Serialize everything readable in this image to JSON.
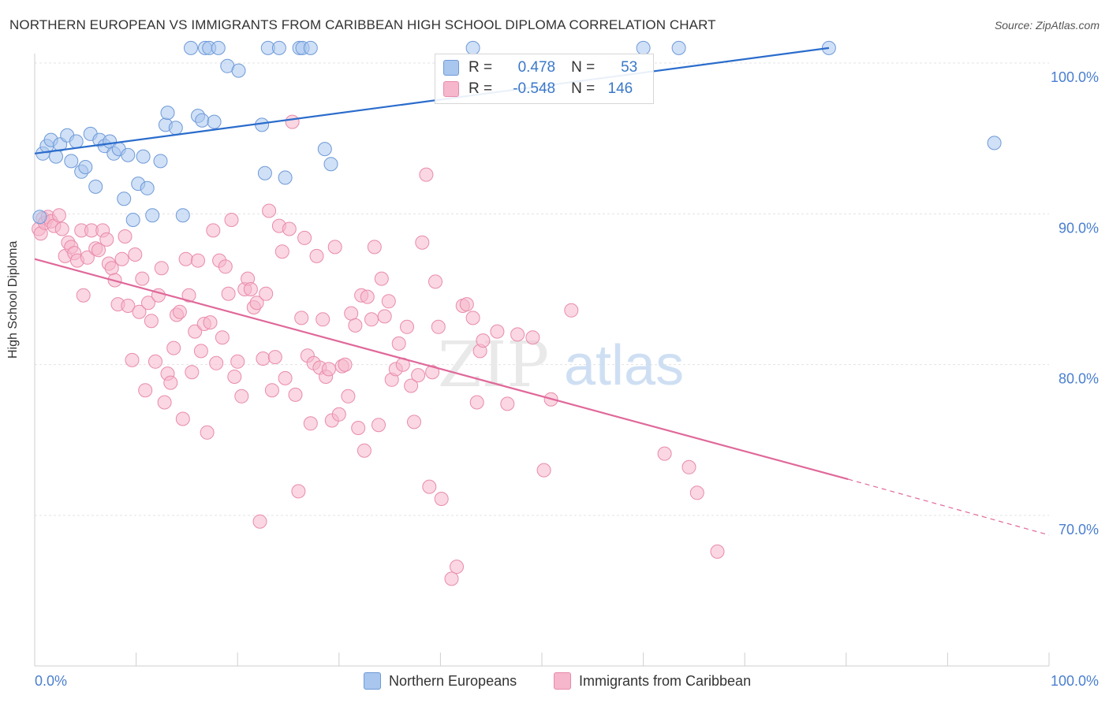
{
  "title": "NORTHERN EUROPEAN VS IMMIGRANTS FROM CARIBBEAN HIGH SCHOOL DIPLOMA CORRELATION CHART",
  "source": "Source: ZipAtlas.com",
  "watermark": {
    "zip": "ZIP",
    "atlas": "atlas"
  },
  "colors": {
    "blue_fill": "#a9c6ee",
    "blue_stroke": "#6e9ad8",
    "blue_line": "#2a6ccc",
    "pink_fill": "#f6b6cb",
    "pink_stroke": "#e98bab",
    "pink_line": "#e0689a",
    "tick_label": "#4a7fcf",
    "grid": "#e3e3e3"
  },
  "legend_stats": [
    {
      "r_label": "R =",
      "r_value": "0.478",
      "n_label": "N =",
      "n_value": "53",
      "color": "#a9c6ee"
    },
    {
      "r_label": "R =",
      "r_value": "-0.548",
      "n_label": "N =",
      "n_value": "146",
      "color": "#f6b6cb"
    }
  ],
  "bottom_legend": [
    {
      "label": "Northern Europeans",
      "color": "#a9c6ee"
    },
    {
      "label": "Immigrants from Caribbean",
      "color": "#f6b6cb"
    }
  ],
  "chart_data": {
    "type": "scatter",
    "title": "NORTHERN EUROPEAN VS IMMIGRANTS FROM CARIBBEAN HIGH SCHOOL DIPLOMA CORRELATION CHART",
    "xlabel": "",
    "ylabel": "High School Diploma",
    "xlim": [
      0,
      100
    ],
    "ylim": [
      59,
      104
    ],
    "x_ticks": [
      "0.0%",
      "100.0%"
    ],
    "y_ticks": [
      {
        "value": 100,
        "label": "100.0%"
      },
      {
        "value": 90,
        "label": "90.0%"
      },
      {
        "value": 80,
        "label": "80.0%"
      },
      {
        "value": 70,
        "label": "70.0%"
      }
    ],
    "grid": true,
    "series": [
      {
        "name": "Northern Europeans",
        "trend": {
          "x0": 0,
          "y0": 94.0,
          "x1": 78.3,
          "y1": 101.0
        },
        "points": [
          [
            0.5,
            89.8
          ],
          [
            0.8,
            94
          ],
          [
            1.2,
            94.5
          ],
          [
            1.6,
            94.9
          ],
          [
            2.1,
            93.8
          ],
          [
            2.5,
            94.6
          ],
          [
            3.2,
            95.2
          ],
          [
            3.6,
            93.5
          ],
          [
            4.1,
            94.8
          ],
          [
            4.6,
            92.8
          ],
          [
            5,
            93.1
          ],
          [
            5.5,
            95.3
          ],
          [
            6,
            91.8
          ],
          [
            6.4,
            94.9
          ],
          [
            6.9,
            94.5
          ],
          [
            7.4,
            94.8
          ],
          [
            7.8,
            94
          ],
          [
            8.3,
            94.3
          ],
          [
            8.8,
            91
          ],
          [
            9.2,
            93.9
          ],
          [
            9.7,
            89.6
          ],
          [
            10.2,
            92
          ],
          [
            10.7,
            93.8
          ],
          [
            11.1,
            91.7
          ],
          [
            11.6,
            89.9
          ],
          [
            12.4,
            93.5
          ],
          [
            12.9,
            95.9
          ],
          [
            13.1,
            96.7
          ],
          [
            13.9,
            95.7
          ],
          [
            14.6,
            89.9
          ],
          [
            15.4,
            101
          ],
          [
            16.1,
            96.5
          ],
          [
            16.5,
            96.2
          ],
          [
            16.8,
            101
          ],
          [
            17.2,
            101
          ],
          [
            17.7,
            96.1
          ],
          [
            18.1,
            101
          ],
          [
            19,
            99.8
          ],
          [
            20.1,
            99.5
          ],
          [
            22.4,
            95.9
          ],
          [
            22.7,
            92.7
          ],
          [
            23,
            101
          ],
          [
            24.1,
            101
          ],
          [
            24.7,
            92.4
          ],
          [
            26.1,
            101
          ],
          [
            26.4,
            101
          ],
          [
            27.2,
            101
          ],
          [
            28.6,
            94.3
          ],
          [
            29.2,
            93.3
          ],
          [
            43.2,
            101
          ],
          [
            60,
            101
          ],
          [
            63.5,
            101
          ],
          [
            78.3,
            101
          ],
          [
            94.6,
            94.7
          ]
        ]
      },
      {
        "name": "Immigrants from Caribbean",
        "trend": {
          "x0": 0,
          "y0": 87.0,
          "x1": 80.2,
          "y1": 72.4,
          "dash_x1": 100,
          "dash_y1": 68.7
        },
        "points": [
          [
            0.4,
            89
          ],
          [
            0.6,
            88.7
          ],
          [
            0.8,
            89.7
          ],
          [
            1,
            89.4
          ],
          [
            1.3,
            89.8
          ],
          [
            1.6,
            89.5
          ],
          [
            1.9,
            89.2
          ],
          [
            2.4,
            89.9
          ],
          [
            2.7,
            89
          ],
          [
            3,
            87.2
          ],
          [
            3.3,
            88.1
          ],
          [
            3.6,
            87.8
          ],
          [
            3.9,
            87.4
          ],
          [
            4.2,
            86.9
          ],
          [
            4.6,
            88.9
          ],
          [
            4.8,
            84.6
          ],
          [
            5.2,
            87.1
          ],
          [
            5.6,
            88.9
          ],
          [
            6,
            87.7
          ],
          [
            6.3,
            87.6
          ],
          [
            6.7,
            88.9
          ],
          [
            7.1,
            88.3
          ],
          [
            7.3,
            86.7
          ],
          [
            7.6,
            86.4
          ],
          [
            7.9,
            85.6
          ],
          [
            8.2,
            84
          ],
          [
            8.6,
            87
          ],
          [
            8.9,
            88.5
          ],
          [
            9.2,
            83.9
          ],
          [
            9.6,
            80.3
          ],
          [
            9.9,
            87.3
          ],
          [
            10.3,
            83.5
          ],
          [
            10.6,
            85.7
          ],
          [
            10.9,
            78.3
          ],
          [
            11.2,
            84.1
          ],
          [
            11.5,
            82.9
          ],
          [
            11.9,
            80.2
          ],
          [
            12.2,
            84.6
          ],
          [
            12.5,
            86.4
          ],
          [
            12.8,
            77.5
          ],
          [
            13.1,
            79.4
          ],
          [
            13.4,
            78.8
          ],
          [
            13.7,
            81.1
          ],
          [
            14,
            83.3
          ],
          [
            14.3,
            83.5
          ],
          [
            14.6,
            76.4
          ],
          [
            14.9,
            87
          ],
          [
            15.2,
            84.6
          ],
          [
            15.5,
            79.5
          ],
          [
            15.8,
            82.2
          ],
          [
            16.1,
            86.9
          ],
          [
            16.4,
            80.9
          ],
          [
            16.7,
            82.7
          ],
          [
            17,
            75.5
          ],
          [
            17.3,
            82.8
          ],
          [
            17.6,
            88.9
          ],
          [
            17.9,
            80.1
          ],
          [
            18.2,
            86.9
          ],
          [
            18.5,
            81.8
          ],
          [
            18.8,
            86.5
          ],
          [
            19.1,
            84.7
          ],
          [
            19.4,
            89.6
          ],
          [
            19.7,
            79.2
          ],
          [
            20,
            80.2
          ],
          [
            20.4,
            77.9
          ],
          [
            20.7,
            85
          ],
          [
            21,
            85.7
          ],
          [
            21.3,
            85
          ],
          [
            21.6,
            83.8
          ],
          [
            21.9,
            84.1
          ],
          [
            22.2,
            69.6
          ],
          [
            22.5,
            80.4
          ],
          [
            22.8,
            84.7
          ],
          [
            23.1,
            90.2
          ],
          [
            23.4,
            78.3
          ],
          [
            23.7,
            80.5
          ],
          [
            24.1,
            89.2
          ],
          [
            24.4,
            87.5
          ],
          [
            24.7,
            79.1
          ],
          [
            25.1,
            89
          ],
          [
            25.4,
            96.1
          ],
          [
            25.7,
            78
          ],
          [
            26,
            71.6
          ],
          [
            26.3,
            83.1
          ],
          [
            26.6,
            88.4
          ],
          [
            26.9,
            80.6
          ],
          [
            27.2,
            76.1
          ],
          [
            27.5,
            80.1
          ],
          [
            27.8,
            87.2
          ],
          [
            28.1,
            79.8
          ],
          [
            28.4,
            83
          ],
          [
            28.7,
            79.2
          ],
          [
            29,
            79.7
          ],
          [
            29.3,
            76.3
          ],
          [
            29.6,
            87.8
          ],
          [
            30,
            76.7
          ],
          [
            30.3,
            79.9
          ],
          [
            30.6,
            80
          ],
          [
            30.9,
            77.9
          ],
          [
            31.2,
            83.4
          ],
          [
            31.6,
            82.6
          ],
          [
            31.9,
            75.8
          ],
          [
            32.2,
            84.6
          ],
          [
            32.5,
            74.3
          ],
          [
            32.8,
            84.5
          ],
          [
            33.2,
            83
          ],
          [
            33.5,
            87.8
          ],
          [
            33.9,
            76
          ],
          [
            34.2,
            85.7
          ],
          [
            34.5,
            83.2
          ],
          [
            34.9,
            84.2
          ],
          [
            35.2,
            79
          ],
          [
            35.6,
            79.7
          ],
          [
            35.9,
            81.4
          ],
          [
            36.3,
            80
          ],
          [
            36.7,
            82.5
          ],
          [
            37.1,
            78.6
          ],
          [
            37.4,
            76.2
          ],
          [
            37.8,
            79.3
          ],
          [
            38.2,
            88.1
          ],
          [
            38.6,
            92.6
          ],
          [
            38.9,
            71.9
          ],
          [
            39.2,
            79.5
          ],
          [
            39.5,
            85.5
          ],
          [
            39.8,
            82.5
          ],
          [
            40.1,
            71.1
          ],
          [
            41.1,
            65.8
          ],
          [
            41.6,
            66.6
          ],
          [
            42.2,
            83.9
          ],
          [
            42.6,
            84
          ],
          [
            43.2,
            83.1
          ],
          [
            43.6,
            77.5
          ],
          [
            43.9,
            80.9
          ],
          [
            44.2,
            81.6
          ],
          [
            45.6,
            82.2
          ],
          [
            46.6,
            77.4
          ],
          [
            47.6,
            82
          ],
          [
            49.1,
            81.8
          ],
          [
            50.2,
            73
          ],
          [
            50.9,
            77.7
          ],
          [
            52.9,
            83.6
          ],
          [
            62.1,
            74.1
          ],
          [
            64.5,
            73.2
          ],
          [
            65.3,
            71.5
          ],
          [
            67.3,
            67.6
          ]
        ]
      }
    ]
  }
}
